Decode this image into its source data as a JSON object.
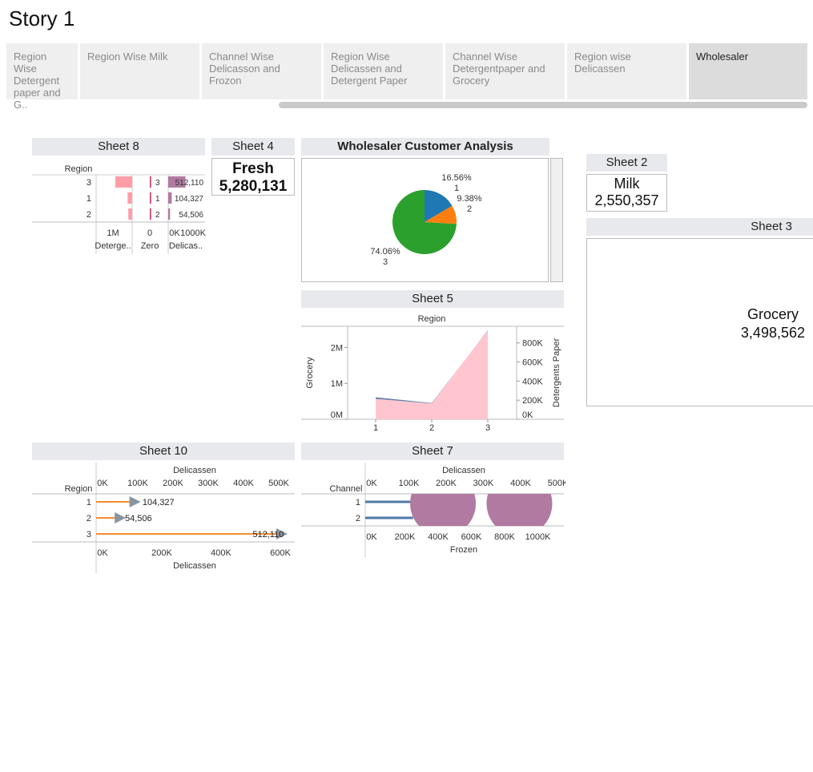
{
  "story": {
    "title": "Story 1"
  },
  "tabs": [
    {
      "label": "Region Wise Detergent paper and G..",
      "active": false
    },
    {
      "label": "Region Wise Milk",
      "active": false
    },
    {
      "label": "Channel Wise Delicasson and Frozon",
      "active": false
    },
    {
      "label": "Region Wise Delicassen and Detergent Paper",
      "active": false
    },
    {
      "label": "Channel Wise Detergentpaper and Grocery",
      "active": false
    },
    {
      "label": "Region wise Delicassen",
      "active": false
    },
    {
      "label": "Wholesaler",
      "active": true
    }
  ],
  "sheets": {
    "sheet8": {
      "title": "Sheet 8",
      "row_header": "Region",
      "rows": [
        "3",
        "1",
        "2"
      ],
      "col_labels": [
        "Deterge..",
        "Zero",
        "Delicas.."
      ]
    },
    "sheet4": {
      "title": "Sheet 4",
      "label": "Fresh",
      "value": "5,280,131"
    },
    "wholesaler": {
      "title": "Wholesaler Customer Analysis"
    },
    "sheet2": {
      "title": "Sheet 2",
      "label": "Milk",
      "value": "2,550,357"
    },
    "sheet3": {
      "title": "Sheet 3",
      "label": "Grocery",
      "value": "3,498,562"
    },
    "sheet5": {
      "title": "Sheet 5",
      "top_label": "Region",
      "y_left": "Grocery",
      "y_right": "Detergents Paper"
    },
    "sheet10": {
      "title": "Sheet 10",
      "row_header": "Region",
      "axis_label": "Delicassen"
    },
    "sheet7": {
      "title": "Sheet 7",
      "row_header": "Channel",
      "top_axis_label": "Delicassen",
      "bottom_axis_label": "Frozen"
    }
  },
  "colors": {
    "pink": "#ff9da7",
    "purple": "#b07aa1",
    "blue": "#1f77b4",
    "orange": "#ff7f0e",
    "green": "#2ca02c",
    "steel": "#4e79a7",
    "gold": "#f28e2b"
  },
  "chart_data": [
    {
      "id": "sheet8",
      "type": "bar",
      "categories": [
        "3",
        "1",
        "2"
      ],
      "series": [
        {
          "name": "Deterge..",
          "values": [
            1000000,
            270000,
            230000
          ],
          "ticks": [
            "1M"
          ]
        },
        {
          "name": "Zero",
          "values": [
            3,
            1,
            2
          ],
          "data_labels": [
            "3",
            "1",
            "2"
          ],
          "ticks": [
            "0"
          ]
        },
        {
          "name": "Delicas..",
          "values": [
            512110,
            104327,
            54506
          ],
          "data_labels": [
            "512,110",
            "104,327",
            "54,506"
          ],
          "ticks": [
            "0K",
            "1000K"
          ]
        }
      ]
    },
    {
      "id": "wholesaler",
      "type": "pie",
      "slices": [
        {
          "label": "1",
          "percent": 16.56,
          "display": "16.56%",
          "color": "#1f77b4"
        },
        {
          "label": "2",
          "percent": 9.38,
          "display": "9.38%",
          "color": "#ff7f0e"
        },
        {
          "label": "3",
          "percent": 74.06,
          "display": "74.06%",
          "color": "#2ca02c"
        }
      ]
    },
    {
      "id": "sheet5",
      "type": "area",
      "title": "Region",
      "x": [
        "1",
        "2",
        "3"
      ],
      "series": [
        {
          "name": "Grocery",
          "values": [
            570000,
            440000,
            2480000
          ],
          "axis": "left"
        },
        {
          "name": "Detergents Paper",
          "values": [
            230000,
            170000,
            930000
          ],
          "axis": "right"
        }
      ],
      "ylabel": "Grocery",
      "ylim": [
        0,
        2500000
      ],
      "yticks": [
        "0M",
        "1M",
        "2M"
      ],
      "y2label": "Detergents Paper",
      "y2lim": [
        0,
        940000
      ],
      "y2ticks": [
        "0K",
        "200K",
        "400K",
        "600K",
        "800K"
      ]
    },
    {
      "id": "sheet10",
      "type": "bar",
      "categories": [
        "1",
        "2",
        "3"
      ],
      "values": [
        104327,
        54506,
        512110
      ],
      "data_labels": [
        "104,327",
        "54,506",
        "512,110"
      ],
      "markers": [
        104327,
        54506,
        600000
      ],
      "xlabel": "Delicassen",
      "top_ticks": [
        "0K",
        "100K",
        "200K",
        "300K",
        "400K",
        "500K"
      ],
      "bottom_ticks": [
        "0K",
        "200K",
        "400K",
        "600K"
      ]
    },
    {
      "id": "sheet7",
      "type": "bar",
      "categories": [
        "1",
        "2"
      ],
      "bar_values": [
        500000,
        210000
      ],
      "circle_values": [
        670000,
        1130000
      ],
      "top_label": "Delicassen",
      "top_ticks": [
        "0K",
        "100K",
        "200K",
        "300K",
        "400K",
        "500K"
      ],
      "bottom_label": "Frozen",
      "bottom_ticks": [
        "0K",
        "200K",
        "400K",
        "600K",
        "800K",
        "1000K"
      ]
    }
  ]
}
